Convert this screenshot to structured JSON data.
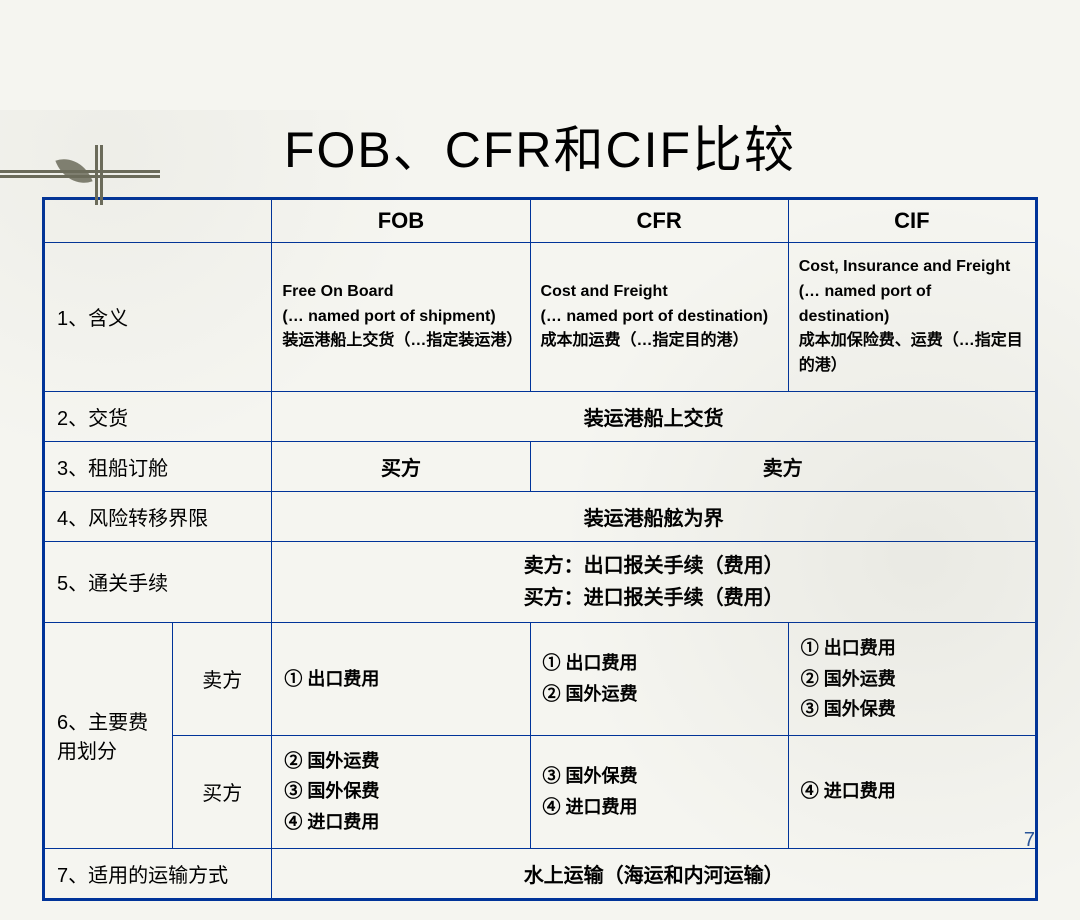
{
  "title": "FOB、CFR和CIF比较",
  "page_number": "7",
  "columns": {
    "blank": "",
    "fob": "FOB",
    "cfr": "CFR",
    "cif": "CIF"
  },
  "rows": {
    "r1": {
      "label": "1、含义",
      "fob": "Free On Board\n(… named port of shipment)\n装运港船上交货（…指定装运港）",
      "cfr": "Cost and Freight\n(… named port of destination)\n成本加运费（…指定目的港）",
      "cif": "Cost, Insurance and Freight\n(… named port of destination)\n成本加保险费、运费（…指定目的港）"
    },
    "r2": {
      "label": "2、交货",
      "merged": "装运港船上交货"
    },
    "r3": {
      "label": "3、租船订舱",
      "fob": "买方",
      "cfr_cif": "卖方"
    },
    "r4": {
      "label": "4、风险转移界限",
      "merged": "装运港船舷为界"
    },
    "r5": {
      "label": "5、通关手续",
      "line1": "卖方：出口报关手续（费用）",
      "line2": "买方：进口报关手续（费用）"
    },
    "r6": {
      "label": "6、主要费用划分",
      "seller_label": "卖方",
      "buyer_label": "买方",
      "seller": {
        "fob": "① 出口费用",
        "cfr": "① 出口费用\n② 国外运费",
        "cif": "① 出口费用\n② 国外运费\n③ 国外保费"
      },
      "buyer": {
        "fob": "② 国外运费\n③ 国外保费\n④ 进口费用",
        "cfr": "③ 国外保费\n④ 进口费用",
        "cif": "④ 进口费用"
      }
    },
    "r7": {
      "label": "7、适用的运输方式",
      "merged": "水上运输（海运和内河运输）"
    }
  },
  "style": {
    "border_color": "#003399",
    "background": "#f5f5f0",
    "accent_color": "#6b6b5a",
    "page_num_color": "#2a5599"
  }
}
